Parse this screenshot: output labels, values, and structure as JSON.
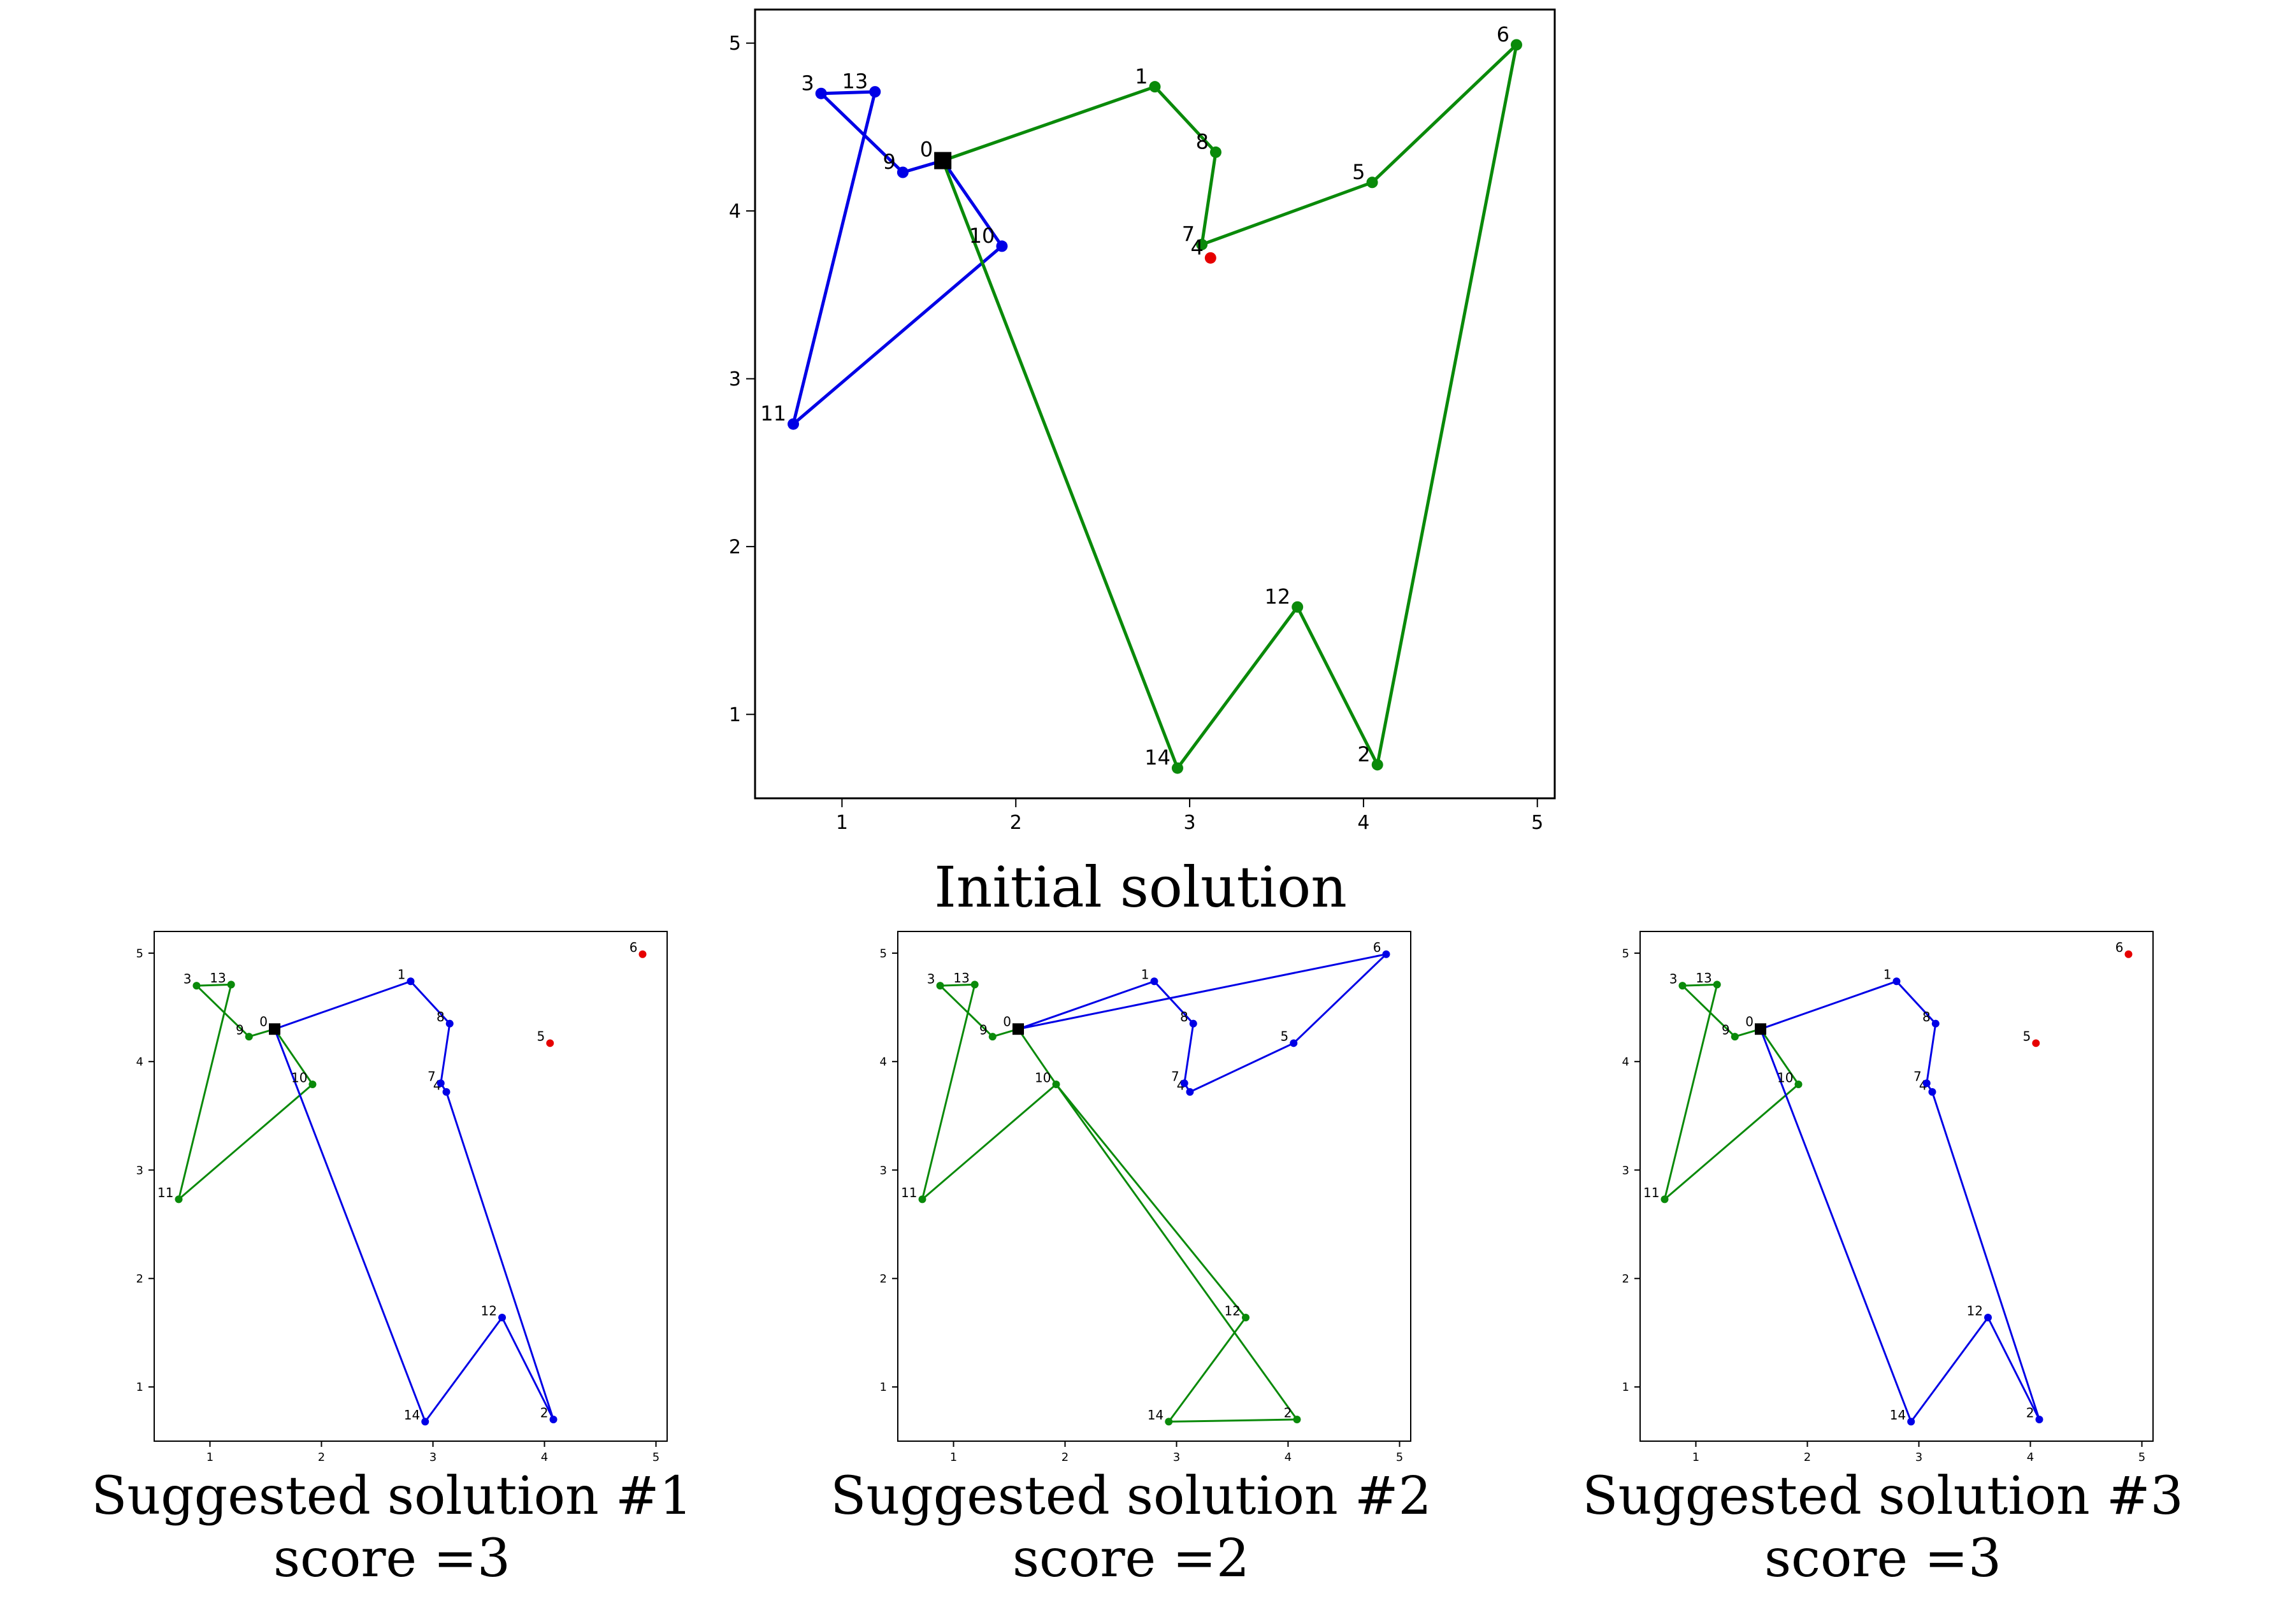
{
  "chart_data": [
    {
      "type": "line",
      "caption": "Initial solution",
      "xlim": [
        0.5,
        5.1
      ],
      "ylim": [
        0.5,
        5.2
      ],
      "xticks": [
        1,
        2,
        3,
        4,
        5
      ],
      "yticks": [
        1,
        2,
        3,
        4,
        5
      ],
      "grid": false,
      "depot": {
        "label": "0",
        "x": 1.58,
        "y": 4.3
      },
      "unserved": [
        {
          "label": "4",
          "x": 3.12,
          "y": 3.72
        }
      ],
      "nodes": [
        {
          "label": "1",
          "x": 2.8,
          "y": 4.74
        },
        {
          "label": "2",
          "x": 4.08,
          "y": 0.7
        },
        {
          "label": "3",
          "x": 0.88,
          "y": 4.7
        },
        {
          "label": "5",
          "x": 4.05,
          "y": 4.17
        },
        {
          "label": "6",
          "x": 4.88,
          "y": 4.99
        },
        {
          "label": "7",
          "x": 3.07,
          "y": 3.8
        },
        {
          "label": "8",
          "x": 3.15,
          "y": 4.35
        },
        {
          "label": "9",
          "x": 1.35,
          "y": 4.23
        },
        {
          "label": "10",
          "x": 1.92,
          "y": 3.79
        },
        {
          "label": "11",
          "x": 0.72,
          "y": 2.73
        },
        {
          "label": "12",
          "x": 3.62,
          "y": 1.64
        },
        {
          "label": "13",
          "x": 1.19,
          "y": 4.71
        },
        {
          "label": "14",
          "x": 2.93,
          "y": 0.68
        }
      ],
      "routes": [
        {
          "color": "#0000e6",
          "path": [
            [
              1.58,
              4.3
            ],
            [
              1.35,
              4.23
            ],
            [
              0.88,
              4.7
            ],
            [
              1.19,
              4.71
            ],
            [
              0.72,
              2.73
            ],
            [
              1.92,
              3.79
            ],
            [
              1.58,
              4.3
            ]
          ]
        },
        {
          "color": "#0a8a0a",
          "path": [
            [
              1.58,
              4.3
            ],
            [
              2.8,
              4.74
            ],
            [
              3.15,
              4.35
            ],
            [
              3.07,
              3.8
            ],
            [
              4.05,
              4.17
            ],
            [
              4.88,
              4.99
            ],
            [
              4.08,
              0.7
            ],
            [
              3.62,
              1.64
            ],
            [
              2.93,
              0.68
            ],
            [
              1.58,
              4.3
            ]
          ]
        }
      ]
    },
    {
      "type": "line",
      "caption": "Suggested solution #1 score =3",
      "xlim": [
        0.5,
        5.1
      ],
      "ylim": [
        0.5,
        5.2
      ],
      "xticks": [
        1,
        2,
        3,
        4,
        5
      ],
      "yticks": [
        1,
        2,
        3,
        4,
        5
      ],
      "grid": false,
      "depot": {
        "label": "0",
        "x": 1.58,
        "y": 4.3
      },
      "unserved": [
        {
          "label": "6",
          "x": 4.88,
          "y": 4.99
        },
        {
          "label": "5",
          "x": 4.05,
          "y": 4.17
        }
      ],
      "nodes": [
        {
          "label": "1",
          "x": 2.8,
          "y": 4.74
        },
        {
          "label": "2",
          "x": 4.08,
          "y": 0.7
        },
        {
          "label": "3",
          "x": 0.88,
          "y": 4.7
        },
        {
          "label": "4",
          "x": 3.12,
          "y": 3.72
        },
        {
          "label": "7",
          "x": 3.07,
          "y": 3.8
        },
        {
          "label": "8",
          "x": 3.15,
          "y": 4.35
        },
        {
          "label": "9",
          "x": 1.35,
          "y": 4.23
        },
        {
          "label": "10",
          "x": 1.92,
          "y": 3.79
        },
        {
          "label": "11",
          "x": 0.72,
          "y": 2.73
        },
        {
          "label": "12",
          "x": 3.62,
          "y": 1.64
        },
        {
          "label": "13",
          "x": 1.19,
          "y": 4.71
        },
        {
          "label": "14",
          "x": 2.93,
          "y": 0.68
        }
      ],
      "routes": [
        {
          "color": "#0a8a0a",
          "path": [
            [
              1.58,
              4.3
            ],
            [
              1.35,
              4.23
            ],
            [
              0.88,
              4.7
            ],
            [
              1.19,
              4.71
            ],
            [
              0.72,
              2.73
            ],
            [
              1.92,
              3.79
            ],
            [
              1.58,
              4.3
            ]
          ]
        },
        {
          "color": "#0000e6",
          "path": [
            [
              1.58,
              4.3
            ],
            [
              2.8,
              4.74
            ],
            [
              3.15,
              4.35
            ],
            [
              3.07,
              3.8
            ],
            [
              3.12,
              3.72
            ],
            [
              4.08,
              0.7
            ],
            [
              3.62,
              1.64
            ],
            [
              2.93,
              0.68
            ],
            [
              1.58,
              4.3
            ]
          ]
        }
      ]
    },
    {
      "type": "line",
      "caption": "Suggested solution #2 score =2",
      "xlim": [
        0.5,
        5.1
      ],
      "ylim": [
        0.5,
        5.2
      ],
      "xticks": [
        1,
        2,
        3,
        4,
        5
      ],
      "yticks": [
        1,
        2,
        3,
        4,
        5
      ],
      "grid": false,
      "depot": {
        "label": "0",
        "x": 1.58,
        "y": 4.3
      },
      "unserved": [],
      "nodes": [
        {
          "label": "1",
          "x": 2.8,
          "y": 4.74
        },
        {
          "label": "2",
          "x": 4.08,
          "y": 0.7
        },
        {
          "label": "3",
          "x": 0.88,
          "y": 4.7
        },
        {
          "label": "4",
          "x": 3.12,
          "y": 3.72
        },
        {
          "label": "5",
          "x": 4.05,
          "y": 4.17
        },
        {
          "label": "6",
          "x": 4.88,
          "y": 4.99
        },
        {
          "label": "7",
          "x": 3.07,
          "y": 3.8
        },
        {
          "label": "8",
          "x": 3.15,
          "y": 4.35
        },
        {
          "label": "9",
          "x": 1.35,
          "y": 4.23
        },
        {
          "label": "10",
          "x": 1.92,
          "y": 3.79
        },
        {
          "label": "11",
          "x": 0.72,
          "y": 2.73
        },
        {
          "label": "12",
          "x": 3.62,
          "y": 1.64
        },
        {
          "label": "13",
          "x": 1.19,
          "y": 4.71
        },
        {
          "label": "14",
          "x": 2.93,
          "y": 0.68
        }
      ],
      "routes": [
        {
          "color": "#0a8a0a",
          "path": [
            [
              1.58,
              4.3
            ],
            [
              1.35,
              4.23
            ],
            [
              0.88,
              4.7
            ],
            [
              1.19,
              4.71
            ],
            [
              0.72,
              2.73
            ],
            [
              1.92,
              3.79
            ],
            [
              3.62,
              1.64
            ],
            [
              2.93,
              0.68
            ],
            [
              4.08,
              0.7
            ],
            [
              1.92,
              3.79
            ],
            [
              1.58,
              4.3
            ]
          ]
        },
        {
          "color": "#0000e6",
          "path": [
            [
              1.58,
              4.3
            ],
            [
              2.8,
              4.74
            ],
            [
              3.15,
              4.35
            ],
            [
              3.07,
              3.8
            ],
            [
              3.12,
              3.72
            ],
            [
              4.05,
              4.17
            ],
            [
              4.88,
              4.99
            ],
            [
              1.58,
              4.3
            ]
          ]
        }
      ]
    },
    {
      "type": "line",
      "caption": "Suggested solution #3 score =3",
      "xlim": [
        0.5,
        5.1
      ],
      "ylim": [
        0.5,
        5.2
      ],
      "xticks": [
        1,
        2,
        3,
        4,
        5
      ],
      "yticks": [
        1,
        2,
        3,
        4,
        5
      ],
      "grid": false,
      "depot": {
        "label": "0",
        "x": 1.58,
        "y": 4.3
      },
      "unserved": [
        {
          "label": "6",
          "x": 4.88,
          "y": 4.99
        },
        {
          "label": "5",
          "x": 4.05,
          "y": 4.17
        }
      ],
      "nodes": [
        {
          "label": "1",
          "x": 2.8,
          "y": 4.74
        },
        {
          "label": "2",
          "x": 4.08,
          "y": 0.7
        },
        {
          "label": "3",
          "x": 0.88,
          "y": 4.7
        },
        {
          "label": "4",
          "x": 3.12,
          "y": 3.72
        },
        {
          "label": "7",
          "x": 3.07,
          "y": 3.8
        },
        {
          "label": "8",
          "x": 3.15,
          "y": 4.35
        },
        {
          "label": "9",
          "x": 1.35,
          "y": 4.23
        },
        {
          "label": "10",
          "x": 1.92,
          "y": 3.79
        },
        {
          "label": "11",
          "x": 0.72,
          "y": 2.73
        },
        {
          "label": "12",
          "x": 3.62,
          "y": 1.64
        },
        {
          "label": "13",
          "x": 1.19,
          "y": 4.71
        },
        {
          "label": "14",
          "x": 2.93,
          "y": 0.68
        }
      ],
      "routes": [
        {
          "color": "#0a8a0a",
          "path": [
            [
              1.58,
              4.3
            ],
            [
              1.35,
              4.23
            ],
            [
              0.88,
              4.7
            ],
            [
              1.19,
              4.71
            ],
            [
              0.72,
              2.73
            ],
            [
              1.92,
              3.79
            ],
            [
              1.58,
              4.3
            ]
          ]
        },
        {
          "color": "#0000e6",
          "path": [
            [
              1.58,
              4.3
            ],
            [
              2.8,
              4.74
            ],
            [
              3.15,
              4.35
            ],
            [
              3.07,
              3.8
            ],
            [
              3.12,
              3.72
            ],
            [
              4.08,
              0.7
            ],
            [
              3.62,
              1.64
            ],
            [
              2.93,
              0.68
            ],
            [
              1.58,
              4.3
            ]
          ]
        }
      ]
    }
  ],
  "colors": {
    "unserved": "#e60000",
    "depot": "#000000",
    "axis": "#000000"
  }
}
